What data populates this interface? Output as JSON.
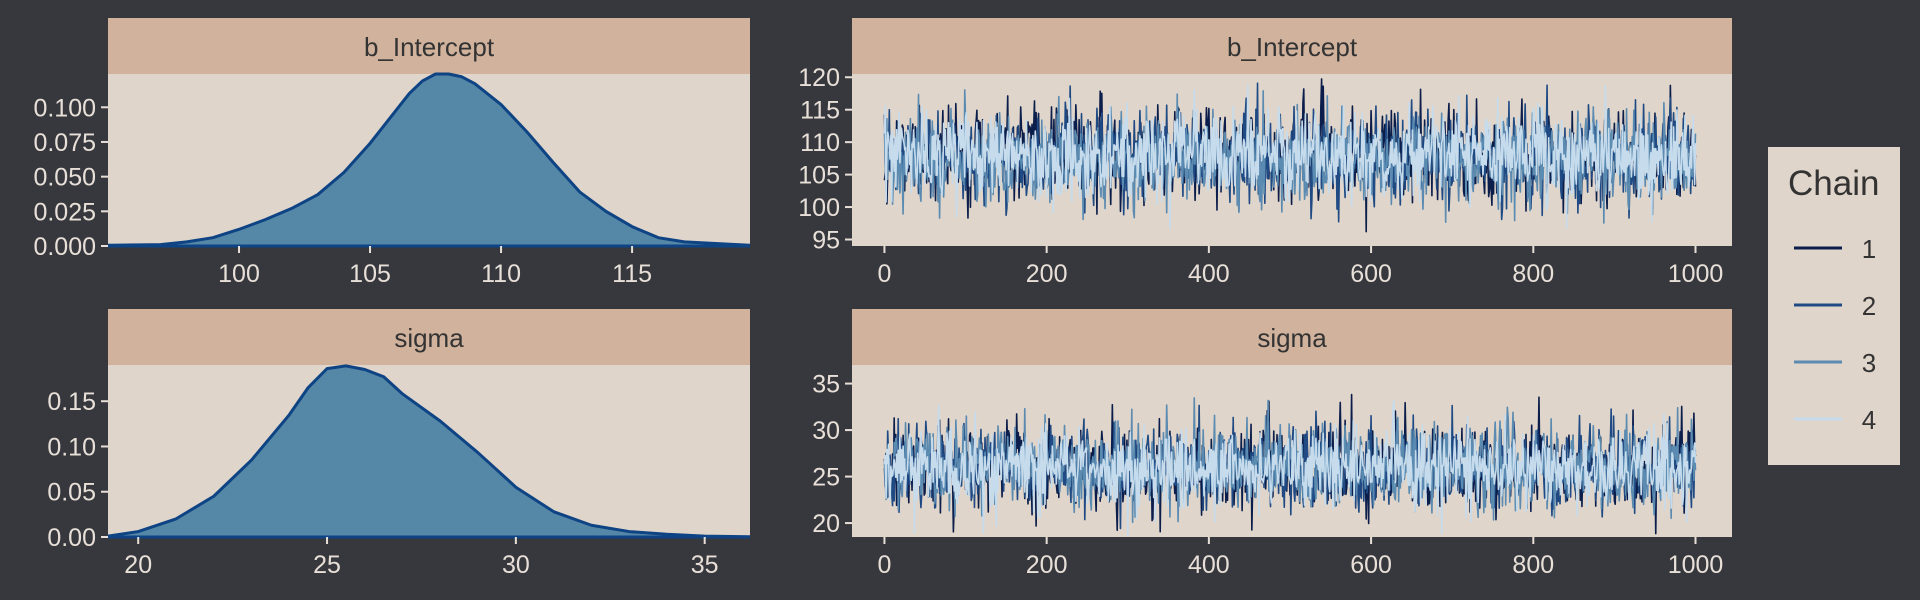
{
  "colors": {
    "background": "#36383d",
    "panel_bg": "#e0d5ca",
    "strip_bg": "#d1b29c",
    "strip_text": "#333333",
    "tick_text": "#e8e0d8",
    "density_fill": "#5587a7",
    "density_line": "#0e4384",
    "chain_colors": [
      "#0b1d4a",
      "#1f4a83",
      "#5b8bb1",
      "#c6dced"
    ]
  },
  "legend": {
    "title": "Chain",
    "items": [
      "1",
      "2",
      "3",
      "4"
    ]
  },
  "chart_data": [
    {
      "type": "area",
      "title": "b_Intercept",
      "xlim": [
        95,
        119.5
      ],
      "ylim": [
        0,
        0.124
      ],
      "xticks": [
        100,
        105,
        110,
        115
      ],
      "yticks": [
        0.0,
        0.025,
        0.05,
        0.075,
        0.1
      ],
      "ytick_labels": [
        "0.000",
        "0.025",
        "0.050",
        "0.075",
        "0.100"
      ],
      "x": [
        95,
        97,
        98,
        99,
        100,
        101,
        102,
        103,
        104,
        105,
        106,
        106.5,
        107,
        107.5,
        108,
        108.5,
        109,
        110,
        111,
        112,
        113,
        114,
        115,
        116,
        117,
        118,
        119.5
      ],
      "y": [
        0.0005,
        0.001,
        0.003,
        0.006,
        0.012,
        0.019,
        0.027,
        0.037,
        0.053,
        0.074,
        0.098,
        0.11,
        0.119,
        0.124,
        0.124,
        0.122,
        0.117,
        0.102,
        0.082,
        0.06,
        0.039,
        0.025,
        0.014,
        0.006,
        0.003,
        0.002,
        0.0005
      ]
    },
    {
      "type": "line",
      "title": "b_Intercept",
      "xlim": [
        -40,
        1045
      ],
      "ylim": [
        94,
        120.5
      ],
      "xticks": [
        0,
        200,
        400,
        600,
        800,
        1000
      ],
      "yticks": [
        95,
        100,
        105,
        110,
        115,
        120
      ],
      "series": [
        {
          "name": "1",
          "mean": 108,
          "sd": 3.4,
          "seed": 11
        },
        {
          "name": "2",
          "mean": 107.5,
          "sd": 3.4,
          "seed": 23
        },
        {
          "name": "3",
          "mean": 107.5,
          "sd": 3.4,
          "seed": 37
        },
        {
          "name": "4",
          "mean": 108,
          "sd": 3.3,
          "seed": 53
        }
      ],
      "iterations": 1000
    },
    {
      "type": "area",
      "title": "sigma",
      "xlim": [
        19.2,
        36.2
      ],
      "ylim": [
        0,
        0.19
      ],
      "xticks": [
        20,
        25,
        30,
        35
      ],
      "yticks": [
        0.0,
        0.05,
        0.1,
        0.15
      ],
      "ytick_labels": [
        "0.00",
        "0.05",
        "0.10",
        "0.15"
      ],
      "x": [
        19.2,
        20,
        21,
        22,
        23,
        24,
        24.5,
        25,
        25.5,
        26,
        26.5,
        27,
        28,
        29,
        30,
        31,
        32,
        33,
        34,
        35,
        36.2
      ],
      "y": [
        0.001,
        0.006,
        0.02,
        0.045,
        0.085,
        0.135,
        0.165,
        0.186,
        0.189,
        0.185,
        0.177,
        0.158,
        0.128,
        0.093,
        0.055,
        0.028,
        0.013,
        0.006,
        0.003,
        0.001,
        0.0003
      ]
    },
    {
      "type": "line",
      "title": "sigma",
      "xlim": [
        -40,
        1045
      ],
      "ylim": [
        18.5,
        37
      ],
      "xticks": [
        0,
        200,
        400,
        600,
        800,
        1000
      ],
      "yticks": [
        20,
        25,
        30,
        35
      ],
      "series": [
        {
          "name": "1",
          "mean": 26,
          "sd": 2.3,
          "seed": 71
        },
        {
          "name": "2",
          "mean": 26,
          "sd": 2.3,
          "seed": 83
        },
        {
          "name": "3",
          "mean": 26,
          "sd": 2.3,
          "seed": 97
        },
        {
          "name": "4",
          "mean": 26,
          "sd": 2.2,
          "seed": 109
        }
      ],
      "iterations": 1000
    }
  ]
}
